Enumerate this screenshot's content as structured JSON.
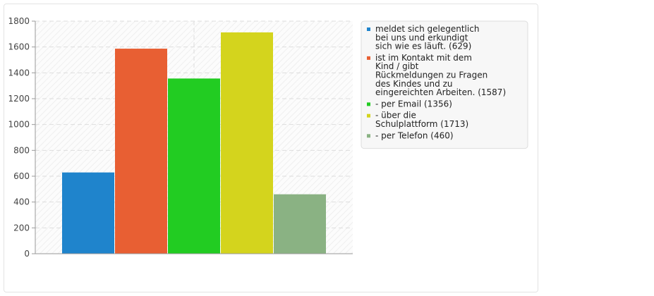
{
  "chart_data": {
    "type": "bar",
    "title": "",
    "xlabel": "",
    "ylabel": "",
    "ylim": [
      0,
      1800
    ],
    "yticks": [
      0,
      200,
      400,
      600,
      800,
      1000,
      1200,
      1400,
      1600,
      1800
    ],
    "grid": true,
    "legend_position": "right",
    "series": [
      {
        "name_lines": [
          "meldet sich gelegentlich",
          "bei uns und erkundigt",
          "sich wie es läuft. (629)"
        ],
        "value": 629,
        "color": "#1f84cc"
      },
      {
        "name_lines": [
          "ist im Kontakt mit dem",
          "Kind / gibt",
          "Rückmeldungen zu Fragen",
          "des Kindes und zu",
          "eingereichten Arbeiten. (1587)"
        ],
        "value": 1587,
        "color": "#e85f33"
      },
      {
        "name_lines": [
          "- per Email (1356)"
        ],
        "value": 1356,
        "color": "#22cc22"
      },
      {
        "name_lines": [
          "- über die",
          "Schulplattform (1713)"
        ],
        "value": 1713,
        "color": "#d4d41d"
      },
      {
        "name_lines": [
          "- per Telefon (460)"
        ],
        "value": 460,
        "color": "#8ab283"
      }
    ]
  }
}
